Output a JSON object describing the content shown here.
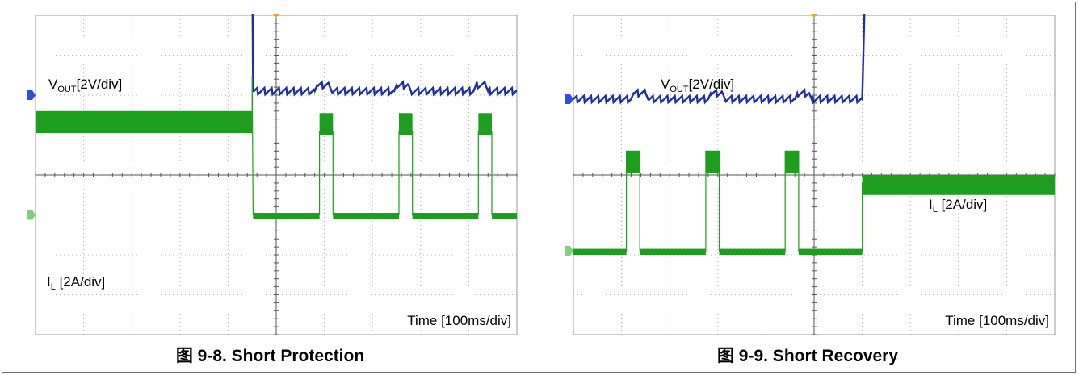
{
  "colors": {
    "voltage": "#1f2ea6",
    "current": "#1e9e1e",
    "marker_ch1": "#2f4fe0",
    "marker_ch2": "#7fcf7f",
    "trigger": "#f0a020"
  },
  "chart_data": [
    {
      "type": "line",
      "title": "图 9-8. Short Protection",
      "xlabel": "Time [100ms/div]",
      "x_divisions": 10,
      "y_divisions": 8,
      "grid": true,
      "series": [
        {
          "name": "VOUT[2V/div]",
          "label_main": "V",
          "label_sub": "OUT",
          "label_rest": "[2V/div]",
          "ground_div": 2.0,
          "values_div": [
            [
              0,
              5.8
            ],
            [
              4.5,
              5.8
            ],
            [
              4.52,
              2.1
            ],
            [
              5.8,
              2.1
            ],
            [
              5.85,
              2.25
            ],
            [
              6.1,
              2.25
            ],
            [
              6.15,
              2.1
            ],
            [
              7.45,
              2.1
            ],
            [
              7.5,
              2.25
            ],
            [
              7.75,
              2.25
            ],
            [
              7.8,
              2.1
            ],
            [
              9.1,
              2.1
            ],
            [
              9.15,
              2.25
            ],
            [
              9.35,
              2.25
            ],
            [
              9.4,
              2.1
            ],
            [
              10,
              2.1
            ]
          ],
          "noise_div": 0.08
        },
        {
          "name": "IL [2A/div]",
          "label_main": "I",
          "label_sub": "L",
          "label_rest": " [2A/div]",
          "ground_div": -1.0,
          "values_div": [
            [
              0,
              1.38
            ],
            [
              4.5,
              1.38
            ],
            [
              4.5,
              2.5
            ],
            [
              4.52,
              -1.0
            ],
            [
              5.9,
              -1.0
            ],
            [
              5.9,
              1.1
            ],
            [
              6.18,
              1.1
            ],
            [
              6.18,
              -1.0
            ],
            [
              7.55,
              -1.0
            ],
            [
              7.55,
              1.1
            ],
            [
              7.83,
              1.1
            ],
            [
              7.83,
              -1.0
            ],
            [
              9.2,
              -1.0
            ],
            [
              9.2,
              1.1
            ],
            [
              9.48,
              1.1
            ],
            [
              9.48,
              -1.0
            ],
            [
              10,
              -1.0
            ]
          ],
          "bands_div": [
            {
              "x0": 0,
              "x1": 4.5,
              "y_low": 1.05,
              "y_high": 1.6
            },
            {
              "x0": 5.9,
              "x1": 6.18,
              "y_low": 1.0,
              "y_high": 1.55
            },
            {
              "x0": 7.55,
              "x1": 7.83,
              "y_low": 1.0,
              "y_high": 1.55
            },
            {
              "x0": 9.2,
              "x1": 9.48,
              "y_low": 1.0,
              "y_high": 1.55
            },
            {
              "x0": 4.52,
              "x1": 5.9,
              "y_low": -1.1,
              "y_high": -0.95
            },
            {
              "x0": 6.18,
              "x1": 7.55,
              "y_low": -1.1,
              "y_high": -0.95
            },
            {
              "x0": 7.83,
              "x1": 9.2,
              "y_low": -1.1,
              "y_high": -0.95
            },
            {
              "x0": 9.48,
              "x1": 10,
              "y_low": -1.1,
              "y_high": -0.95
            }
          ]
        }
      ]
    },
    {
      "type": "line",
      "title": "图 9-9. Short Recovery",
      "xlabel": "Time [100ms/div]",
      "x_divisions": 10,
      "y_divisions": 8,
      "grid": true,
      "series": [
        {
          "name": "VOUT[2V/div]",
          "label_main": "V",
          "label_sub": "OUT",
          "label_rest": "[2V/div]",
          "ground_div": 1.9,
          "values_div": [
            [
              0,
              1.9
            ],
            [
              1.2,
              1.9
            ],
            [
              1.25,
              2.05
            ],
            [
              1.5,
              2.05
            ],
            [
              1.55,
              1.9
            ],
            [
              2.8,
              1.9
            ],
            [
              2.85,
              2.05
            ],
            [
              3.1,
              2.05
            ],
            [
              3.15,
              1.9
            ],
            [
              4.6,
              1.9
            ],
            [
              4.65,
              2.05
            ],
            [
              4.9,
              2.05
            ],
            [
              4.95,
              1.9
            ],
            [
              6.0,
              1.9
            ],
            [
              6.05,
              4.3
            ],
            [
              10,
              4.3
            ]
          ],
          "noise_div": 0.08
        },
        {
          "name": "IL [2A/div]",
          "label_main": "I",
          "label_sub": "L",
          "label_rest": " [2A/div]",
          "ground_div": -1.9,
          "values_div": [
            [
              0,
              -1.9
            ],
            [
              1.1,
              -1.9
            ],
            [
              1.1,
              0.6
            ],
            [
              1.38,
              0.6
            ],
            [
              1.38,
              -1.9
            ],
            [
              2.75,
              -1.9
            ],
            [
              2.75,
              0.6
            ],
            [
              3.03,
              0.6
            ],
            [
              3.03,
              -1.9
            ],
            [
              4.4,
              -1.9
            ],
            [
              4.4,
              0.6
            ],
            [
              4.68,
              0.6
            ],
            [
              4.68,
              -1.9
            ],
            [
              6.0,
              -1.9
            ],
            [
              6.0,
              -0.2
            ],
            [
              10,
              -0.2
            ]
          ],
          "bands_div": [
            {
              "x0": 0,
              "x1": 1.1,
              "y_low": -2.0,
              "y_high": -1.85
            },
            {
              "x0": 1.1,
              "x1": 1.38,
              "y_low": 0.05,
              "y_high": 0.6
            },
            {
              "x0": 1.38,
              "x1": 2.75,
              "y_low": -2.0,
              "y_high": -1.85
            },
            {
              "x0": 2.75,
              "x1": 3.03,
              "y_low": 0.05,
              "y_high": 0.6
            },
            {
              "x0": 3.03,
              "x1": 4.4,
              "y_low": -2.0,
              "y_high": -1.85
            },
            {
              "x0": 4.4,
              "x1": 4.68,
              "y_low": 0.05,
              "y_high": 0.6
            },
            {
              "x0": 4.68,
              "x1": 6.0,
              "y_low": -2.0,
              "y_high": -1.85
            },
            {
              "x0": 6.0,
              "x1": 10,
              "y_low": -0.5,
              "y_high": 0.0
            }
          ]
        }
      ]
    }
  ]
}
